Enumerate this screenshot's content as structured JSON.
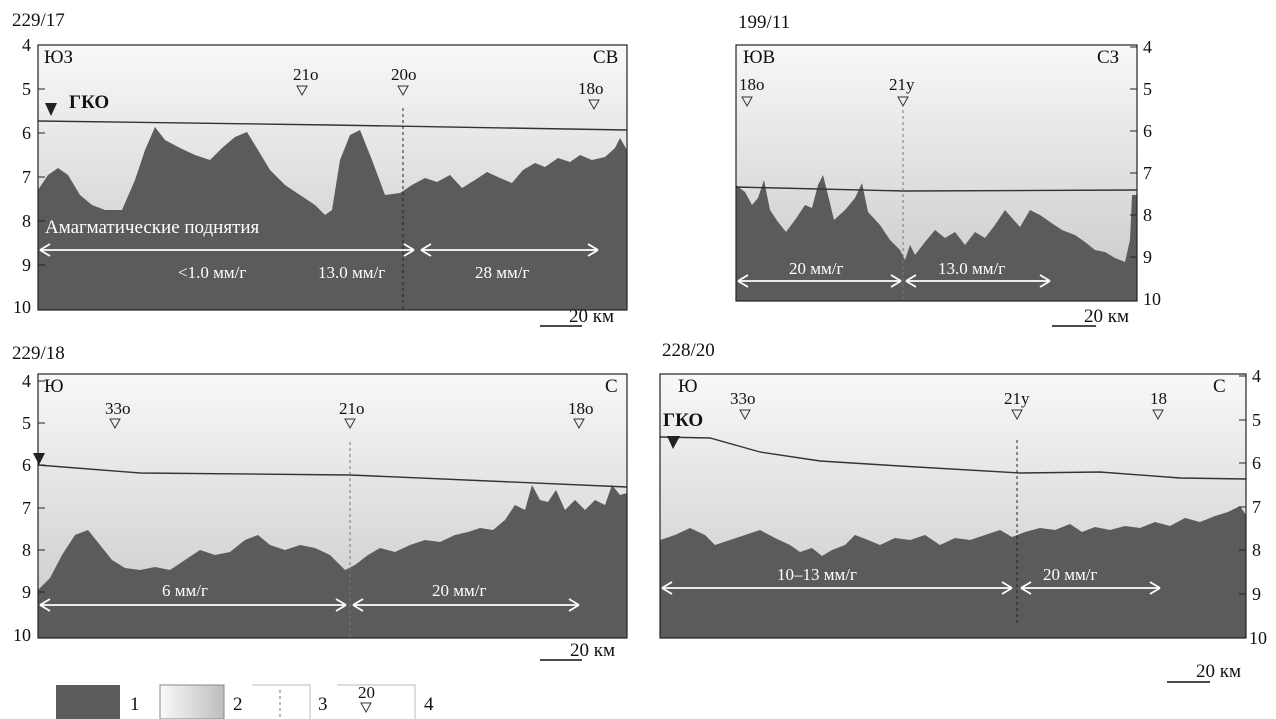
{
  "colors": {
    "basement": "#5b5b5b",
    "sediment_top": "#f7f7f7",
    "sediment_bottom": "#c9c9c9",
    "arrow": "#ffffff"
  },
  "panels": [
    {
      "profile": "229/17",
      "direction_left": "ЮЗ",
      "direction_right": "СВ",
      "ridge_axis_label": "ГКО",
      "region_label": "Амагматические поднятия",
      "magnetic_anomalies": [
        "21о",
        "20о",
        "18о"
      ],
      "spreading_rates": [
        "<1.0 мм/г",
        "13.0 мм/г",
        "28 мм/г"
      ],
      "depth_ticks": [
        "4",
        "5",
        "6",
        "7",
        "8",
        "9",
        "10"
      ],
      "scale_label": "20 км"
    },
    {
      "profile": "199/11",
      "direction_left": "ЮВ",
      "direction_right": "СЗ",
      "magnetic_anomalies": [
        "18о",
        "21у"
      ],
      "spreading_rates": [
        "20 мм/г",
        "13.0 мм/г"
      ],
      "depth_ticks": [
        "4",
        "5",
        "6",
        "7",
        "8",
        "9",
        "10"
      ],
      "scale_label": "20 км"
    },
    {
      "profile": "229/18",
      "direction_left": "Ю",
      "direction_right": "С",
      "magnetic_anomalies": [
        "33о",
        "21о",
        "18о"
      ],
      "spreading_rates": [
        "6 мм/г",
        "20 мм/г"
      ],
      "depth_ticks": [
        "4",
        "5",
        "6",
        "7",
        "8",
        "9",
        "10"
      ],
      "scale_label": "20 км"
    },
    {
      "profile": "228/20",
      "direction_left": "Ю",
      "direction_right": "С",
      "ridge_axis_label": "ГКО",
      "magnetic_anomalies": [
        "33о",
        "21у",
        "18"
      ],
      "spreading_rates": [
        "10–13 мм/г",
        "20 мм/г"
      ],
      "depth_ticks": [
        "4",
        "5",
        "6",
        "7",
        "8",
        "9",
        "10"
      ],
      "scale_label": "20 км"
    }
  ],
  "legend": {
    "items": [
      "1",
      "2",
      "3",
      "4"
    ],
    "anomaly_example": "20"
  }
}
